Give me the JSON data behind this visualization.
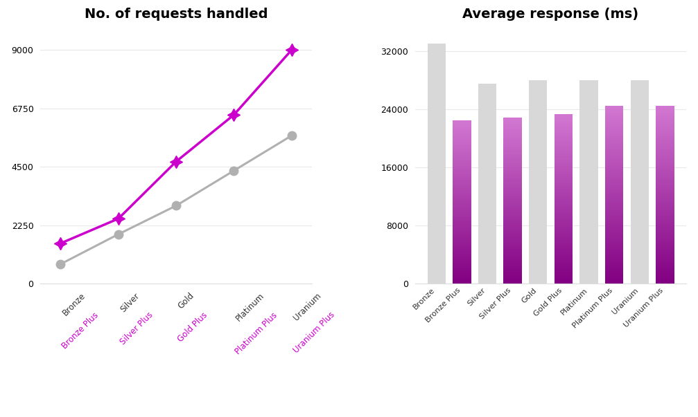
{
  "line_title": "No. of requests handled",
  "bar_title": "Average response (ms)",
  "line_categories": [
    "Bronze",
    "Silver",
    "Gold",
    "Platinum",
    "Uranium"
  ],
  "line_normal_values": [
    750,
    1900,
    3000,
    4350,
    5700
  ],
  "line_plus_values": [
    1550,
    2500,
    4700,
    6500,
    9000
  ],
  "line_normal_color": "#b0b0b0",
  "line_plus_color": "#cc00cc",
  "line_xlabels_normal": [
    "Bronze",
    "Silver",
    "Gold",
    "Platinum",
    "Uranium"
  ],
  "line_xlabels_plus": [
    "Bronze Plus",
    "Silver Plus",
    "Gold Plus",
    "Platinum Plus",
    "Uranium Plus"
  ],
  "bar_categories": [
    "Bronze",
    "Bronze Plus",
    "Silver",
    "Silver Plus",
    "Gold",
    "Gold Plus",
    "Platinum",
    "Platinum Plus",
    "Uranium",
    "Uranium Plus"
  ],
  "bar_values": [
    33000,
    22500,
    27500,
    22800,
    28000,
    23300,
    28000,
    24500,
    28000,
    24500
  ],
  "bar_colors_type": [
    "gray",
    "purple",
    "gray",
    "purple",
    "gray",
    "purple",
    "gray",
    "purple",
    "gray",
    "purple"
  ],
  "background_color": "#ffffff",
  "title_fontsize": 14,
  "tick_label_normal_color": "#333333",
  "tick_label_plus_color": "#cc00cc",
  "yticks_line": [
    0,
    2250,
    4500,
    6750,
    9000
  ],
  "yticks_bar": [
    0,
    8000,
    16000,
    24000,
    32000
  ],
  "bar_ylim": 35000,
  "line_ylim": 9800
}
